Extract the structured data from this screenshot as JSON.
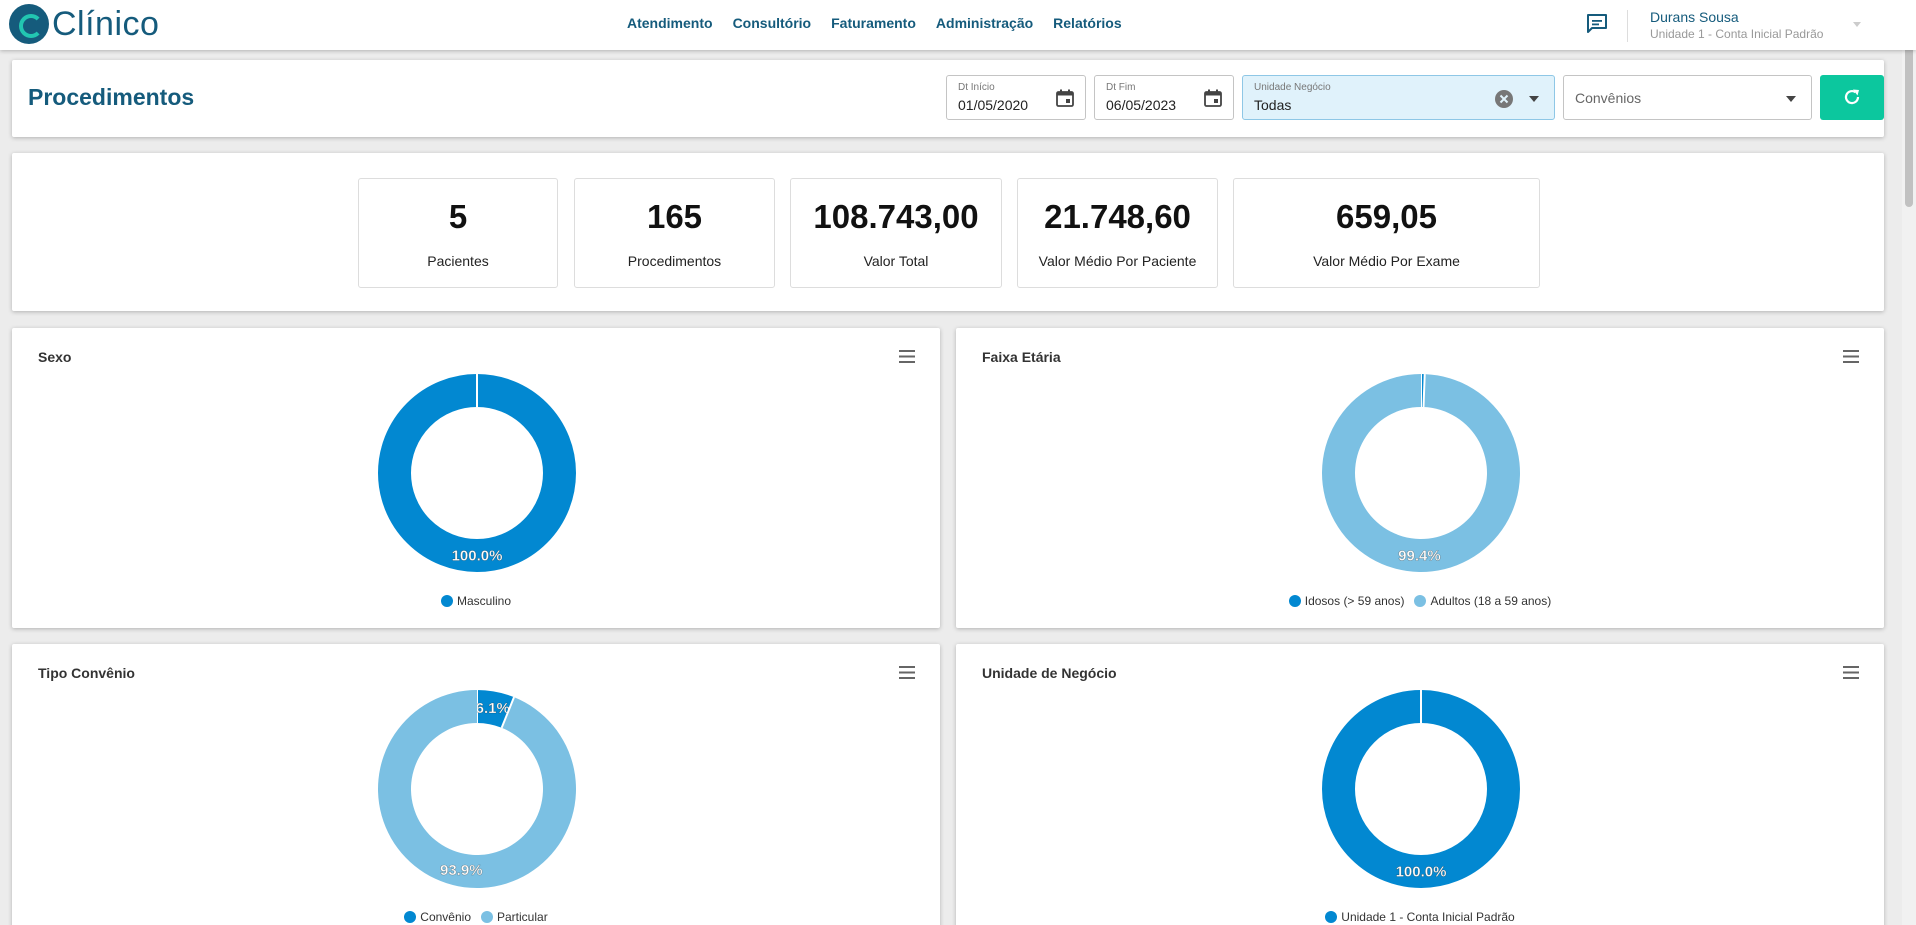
{
  "app": {
    "logo_text": "Clínico"
  },
  "nav": {
    "items": [
      {
        "label": "Atendimento"
      },
      {
        "label": "Consultório"
      },
      {
        "label": "Faturamento"
      },
      {
        "label": "Administração"
      },
      {
        "label": "Relatórios"
      }
    ]
  },
  "user": {
    "name": "Durans Sousa",
    "unit": "Unidade 1 - Conta Inicial Padrão"
  },
  "header": {
    "title": "Procedimentos",
    "start_date": {
      "label": "Dt Início",
      "value": "01/05/2020"
    },
    "end_date": {
      "label": "Dt Fim",
      "value": "06/05/2023"
    },
    "unit_select": {
      "label": "Unidade Negócio",
      "value": "Todas"
    },
    "convenios_select": {
      "placeholder": "Convênios"
    }
  },
  "kpis": [
    {
      "value": "5",
      "label": "Pacientes"
    },
    {
      "value": "165",
      "label": "Procedimentos"
    },
    {
      "value": "108.743,00",
      "label": "Valor Total"
    },
    {
      "value": "21.748,60",
      "label": "Valor Médio Por Paciente"
    },
    {
      "value": "659,05",
      "label": "Valor Médio Por Exame"
    }
  ],
  "colors": {
    "primary": "#155b7c",
    "accent": "#0cc79e",
    "series_dark": "#0288d1",
    "series_light": "#7bc0e3"
  },
  "chart_data": [
    {
      "type": "pie",
      "title": "Sexo",
      "categories": [
        "Masculino"
      ],
      "values": [
        100.0
      ],
      "labels": [
        "100.0%"
      ],
      "colors": [
        "#0288d1"
      ]
    },
    {
      "type": "pie",
      "title": "Faixa Etária",
      "categories": [
        "Idosos (> 59 anos)",
        "Adultos (18 a 59 anos)"
      ],
      "values": [
        0.6,
        99.4
      ],
      "labels": [
        "",
        "99.4%"
      ],
      "colors": [
        "#0288d1",
        "#7bc0e3"
      ]
    },
    {
      "type": "pie",
      "title": "Tipo Convênio",
      "categories": [
        "Convênio",
        "Particular"
      ],
      "values": [
        6.1,
        93.9
      ],
      "labels": [
        "6.1%",
        "93.9%"
      ],
      "colors": [
        "#0288d1",
        "#7bc0e3"
      ]
    },
    {
      "type": "pie",
      "title": "Unidade de Negócio",
      "categories": [
        "Unidade 1 - Conta Inicial Padrão"
      ],
      "values": [
        100.0
      ],
      "labels": [
        "100.0%"
      ],
      "colors": [
        "#0288d1"
      ]
    }
  ]
}
